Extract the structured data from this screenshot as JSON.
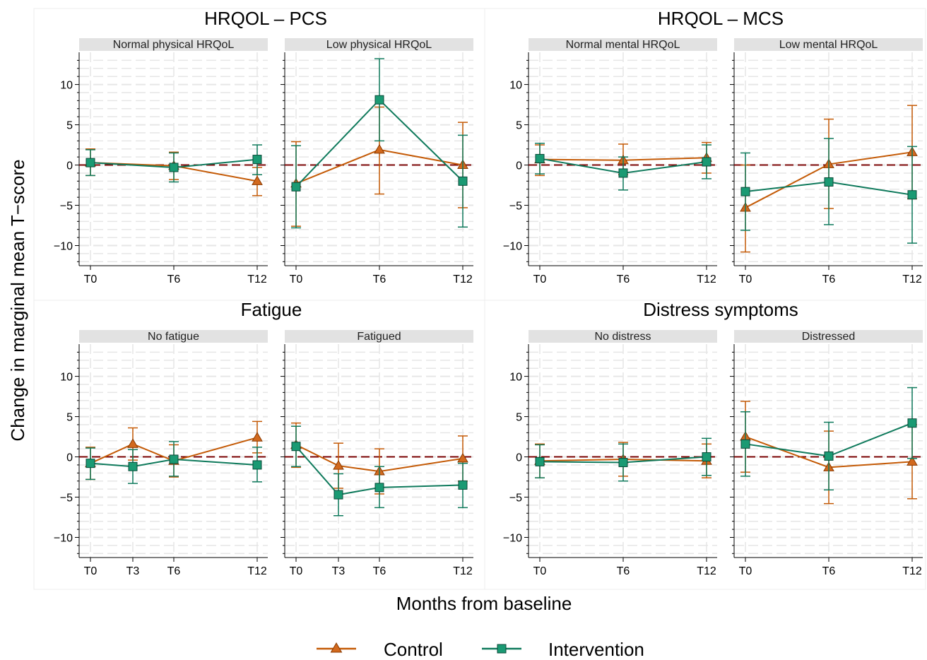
{
  "colors": {
    "control": "#c45a06",
    "intervention": "#0f7a5c",
    "intervention_fill": "#1a9a73",
    "control_fill": "#d2691e",
    "reference_line": "#7a0000",
    "strip_bg": "#e2e2e2",
    "grid": "#e6e6e6"
  },
  "xlabel": "Months from baseline",
  "ylabel": "Change in marginal mean T−score",
  "legend": {
    "placement": "bottom-center",
    "items": [
      {
        "label": "Control",
        "marker": "triangle"
      },
      {
        "label": "Intervention",
        "marker": "square"
      }
    ]
  },
  "chart_data": [
    {
      "type": "line",
      "title": "HRQOL – PCS",
      "ylim": [
        -12.5,
        14
      ],
      "reference_y": 0,
      "yticks": [
        10,
        5,
        0,
        -5,
        -10
      ],
      "ytick_labels": [
        "10",
        "5",
        "0",
        "−5",
        "−10"
      ],
      "facets": [
        {
          "label": "Normal physical HRQoL",
          "x": [
            "T0",
            "T6",
            "T12"
          ],
          "series": [
            {
              "name": "Control",
              "values": [
                0.3,
                -0.1,
                -2.0
              ],
              "ci_low": [
                -1.3,
                -1.8,
                -3.8
              ],
              "ci_high": [
                2.0,
                1.6,
                -0.3
              ]
            },
            {
              "name": "Intervention",
              "values": [
                0.3,
                -0.3,
                0.7
              ],
              "ci_low": [
                -1.3,
                -2.1,
                -1.2
              ],
              "ci_high": [
                1.9,
                1.5,
                2.5
              ]
            }
          ]
        },
        {
          "label": "Low physical HRQoL",
          "x": [
            "T0",
            "T6",
            "T12"
          ],
          "series": [
            {
              "name": "Control",
              "values": [
                -2.3,
                1.9,
                0.0
              ],
              "ci_low": [
                -7.6,
                -3.6,
                -5.3
              ],
              "ci_high": [
                2.9,
                7.2,
                5.3
              ]
            },
            {
              "name": "Intervention",
              "values": [
                -2.7,
                8.1,
                -2.0
              ],
              "ci_low": [
                -7.8,
                3.0,
                -7.7
              ],
              "ci_high": [
                2.4,
                13.2,
                3.7
              ]
            }
          ]
        }
      ]
    },
    {
      "type": "line",
      "title": "HRQOL – MCS",
      "ylim": [
        -12.5,
        14
      ],
      "reference_y": 0,
      "yticks": [
        10,
        5,
        0,
        -5,
        -10
      ],
      "ytick_labels": [
        "10",
        "5",
        "0",
        "−5",
        "−10"
      ],
      "facets": [
        {
          "label": "Normal mental HRQoL",
          "x": [
            "T0",
            "T6",
            "T12"
          ],
          "series": [
            {
              "name": "Control",
              "values": [
                0.7,
                0.6,
                0.9
              ],
              "ci_low": [
                -1.3,
                -1.2,
                -1.0
              ],
              "ci_high": [
                2.5,
                2.6,
                2.8
              ]
            },
            {
              "name": "Intervention",
              "values": [
                0.8,
                -1.0,
                0.4
              ],
              "ci_low": [
                -1.1,
                -3.1,
                -1.7
              ],
              "ci_high": [
                2.7,
                1.0,
                2.5
              ]
            }
          ]
        },
        {
          "label": "Low mental HRQoL",
          "x": [
            "T0",
            "T6",
            "T12"
          ],
          "series": [
            {
              "name": "Control",
              "values": [
                -5.3,
                0.1,
                1.6
              ],
              "ci_low": [
                -10.8,
                -5.4,
                -4.2
              ],
              "ci_high": [
                0.0,
                5.7,
                7.4
              ]
            },
            {
              "name": "Intervention",
              "values": [
                -3.3,
                -2.1,
                -3.7
              ],
              "ci_low": [
                -8.1,
                -7.4,
                -9.7
              ],
              "ci_high": [
                1.5,
                3.3,
                2.3
              ]
            }
          ]
        }
      ]
    },
    {
      "type": "line",
      "title": "Fatigue",
      "ylim": [
        -12.5,
        14
      ],
      "reference_y": 0,
      "yticks": [
        10,
        5,
        0,
        -5,
        -10
      ],
      "ytick_labels": [
        "10",
        "5",
        "0",
        "−5",
        "−10"
      ],
      "facets": [
        {
          "label": "No fatigue",
          "x": [
            "T0",
            "T3",
            "T6",
            "T12"
          ],
          "series": [
            {
              "name": "Control",
              "values": [
                -0.8,
                1.6,
                -0.5,
                2.4
              ],
              "ci_low": [
                -2.8,
                -0.4,
                -2.5,
                0.5
              ],
              "ci_high": [
                1.2,
                3.6,
                1.5,
                4.4
              ]
            },
            {
              "name": "Intervention",
              "values": [
                -0.8,
                -1.2,
                -0.3,
                -1.0
              ],
              "ci_low": [
                -2.8,
                -3.3,
                -2.4,
                -3.1
              ],
              "ci_high": [
                1.1,
                0.9,
                1.9,
                1.2
              ]
            }
          ]
        },
        {
          "label": "Fatigued",
          "x": [
            "T0",
            "T3",
            "T6",
            "T12"
          ],
          "series": [
            {
              "name": "Control",
              "values": [
                1.5,
                -1.1,
                -1.8,
                -0.2
              ],
              "ci_low": [
                -1.3,
                -3.9,
                -4.6,
                -3.0
              ],
              "ci_high": [
                4.2,
                1.7,
                1.0,
                2.6
              ]
            },
            {
              "name": "Intervention",
              "values": [
                1.3,
                -4.7,
                -3.8,
                -3.5
              ],
              "ci_low": [
                -1.2,
                -7.3,
                -6.3,
                -6.3
              ],
              "ci_high": [
                3.8,
                -2.1,
                -1.2,
                -0.8
              ]
            }
          ]
        }
      ]
    },
    {
      "type": "line",
      "title": "Distress symptoms",
      "ylim": [
        -12.5,
        14
      ],
      "reference_y": 0,
      "yticks": [
        10,
        5,
        0,
        -5,
        -10
      ],
      "ytick_labels": [
        "10",
        "5",
        "0",
        "−5",
        "−10"
      ],
      "facets": [
        {
          "label": "No distress",
          "x": [
            "T0",
            "T6",
            "T12"
          ],
          "series": [
            {
              "name": "Control",
              "values": [
                -0.5,
                -0.3,
                -0.5
              ],
              "ci_low": [
                -2.6,
                -2.4,
                -2.6
              ],
              "ci_high": [
                1.6,
                1.8,
                1.6
              ]
            },
            {
              "name": "Intervention",
              "values": [
                -0.6,
                -0.7,
                0.0
              ],
              "ci_low": [
                -2.6,
                -3.0,
                -2.3
              ],
              "ci_high": [
                1.5,
                1.6,
                2.3
              ]
            }
          ]
        },
        {
          "label": "Distressed",
          "x": [
            "T0",
            "T6",
            "T12"
          ],
          "series": [
            {
              "name": "Control",
              "values": [
                2.5,
                -1.3,
                -0.6
              ],
              "ci_low": [
                -1.9,
                -5.8,
                -5.2
              ],
              "ci_high": [
                6.9,
                3.2,
                4.0
              ]
            },
            {
              "name": "Intervention",
              "values": [
                1.6,
                0.1,
                4.2
              ],
              "ci_low": [
                -2.4,
                -4.1,
                -0.2
              ],
              "ci_high": [
                5.6,
                4.3,
                8.6
              ]
            }
          ]
        }
      ]
    }
  ]
}
